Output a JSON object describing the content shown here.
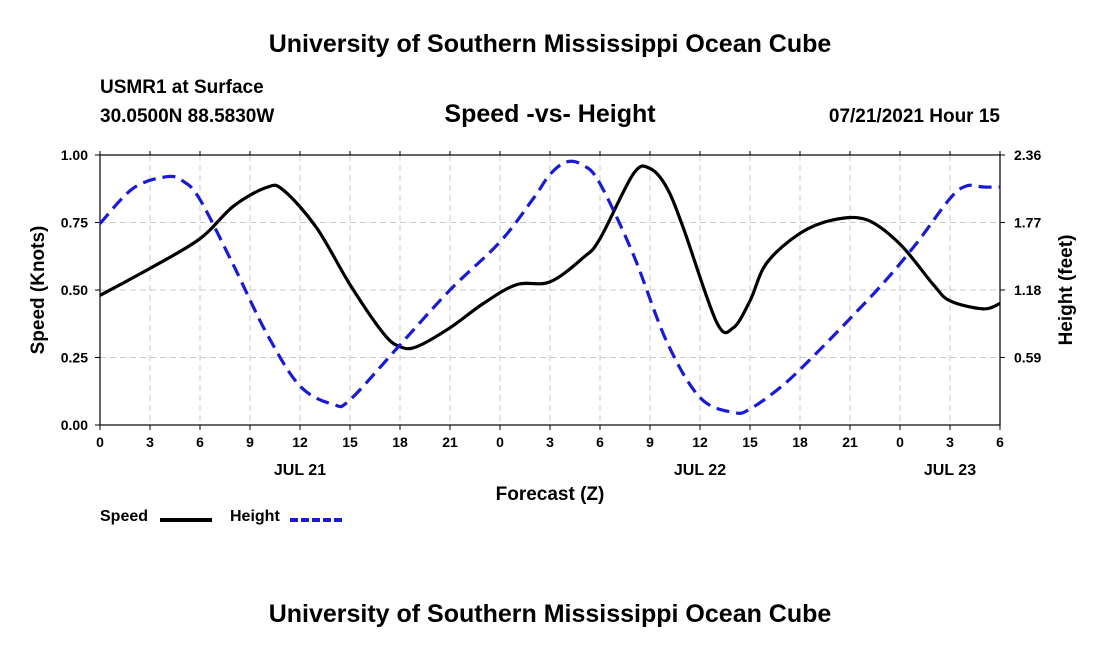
{
  "header": {
    "title": "University of Southern Mississippi Ocean Cube",
    "station": "USMR1 at Surface",
    "coordinates": "30.0500N  88.5830W",
    "subtitle": "Speed -vs- Height",
    "datetime": "07/21/2021 Hour 15"
  },
  "footer": {
    "title": "University of Southern Mississippi Ocean Cube"
  },
  "chart_data": {
    "type": "line",
    "title": "Speed -vs- Height",
    "xlabel": "Forecast (Z)",
    "ylabel_left": "Speed (Knots)",
    "ylabel_right": "Height (feet)",
    "x_unit": "forecast hours from Jul 21 00Z",
    "xlim": [
      0,
      54
    ],
    "x_ticks": [
      0,
      3,
      6,
      9,
      12,
      15,
      18,
      21,
      24,
      27,
      30,
      33,
      36,
      39,
      42,
      45,
      48,
      51,
      54
    ],
    "x_tick_labels": [
      "0",
      "3",
      "6",
      "9",
      "12",
      "15",
      "18",
      "21",
      "0",
      "3",
      "6",
      "9",
      "12",
      "15",
      "18",
      "21",
      "0",
      "3",
      "6"
    ],
    "date_labels": [
      {
        "x": 12,
        "label": "JUL 21"
      },
      {
        "x": 36,
        "label": "JUL 22"
      },
      {
        "x": 51,
        "label": "JUL 23"
      }
    ],
    "ylim_left": [
      0,
      1
    ],
    "y_ticks_left": [
      0,
      0.25,
      0.5,
      0.75,
      1.0
    ],
    "y_tick_labels_left": [
      "0.00",
      "0.25",
      "0.50",
      "0.75",
      "1.00"
    ],
    "ylim_right": [
      0,
      2.36
    ],
    "y_ticks_right": [
      0.59,
      1.18,
      1.77,
      2.36
    ],
    "y_tick_labels_right": [
      "0.59",
      "1.18",
      "1.77",
      "2.36"
    ],
    "grid": true,
    "legend": "bottom-left",
    "series": [
      {
        "name": "Speed",
        "axis": "left",
        "color": "#000000",
        "style": "solid",
        "x": [
          0,
          3,
          6,
          8,
          10,
          11,
          13,
          15,
          17,
          18,
          19,
          21,
          23,
          25,
          27,
          29,
          30,
          32,
          33,
          34,
          35,
          37,
          38,
          39,
          40,
          42,
          44,
          46,
          48,
          50,
          51,
          53,
          54
        ],
        "values": [
          0.48,
          0.58,
          0.69,
          0.81,
          0.88,
          0.87,
          0.73,
          0.52,
          0.34,
          0.29,
          0.29,
          0.36,
          0.45,
          0.52,
          0.53,
          0.62,
          0.69,
          0.93,
          0.95,
          0.88,
          0.73,
          0.38,
          0.36,
          0.46,
          0.6,
          0.71,
          0.76,
          0.76,
          0.67,
          0.52,
          0.46,
          0.43,
          0.45
        ]
      },
      {
        "name": "Height",
        "axis": "right",
        "color": "#1a1ad6",
        "style": "dashed",
        "x": [
          0,
          2,
          4,
          5,
          6,
          8,
          10,
          12,
          14,
          15,
          18,
          21,
          24,
          26,
          27,
          28,
          29,
          30,
          32,
          34,
          36,
          38,
          39,
          41,
          43,
          45,
          47,
          49,
          51,
          52,
          53,
          54
        ],
        "values": [
          1.76,
          2.07,
          2.17,
          2.13,
          1.97,
          1.4,
          0.8,
          0.34,
          0.18,
          0.22,
          0.7,
          1.18,
          1.6,
          1.98,
          2.19,
          2.3,
          2.27,
          2.11,
          1.49,
          0.73,
          0.24,
          0.11,
          0.14,
          0.35,
          0.63,
          0.93,
          1.24,
          1.59,
          1.98,
          2.09,
          2.08,
          2.08
        ]
      }
    ]
  },
  "legend": {
    "items": [
      {
        "label": "Speed",
        "color": "#000000",
        "style": "solid"
      },
      {
        "label": "Height",
        "color": "#1a1ad6",
        "style": "dashed"
      }
    ]
  }
}
